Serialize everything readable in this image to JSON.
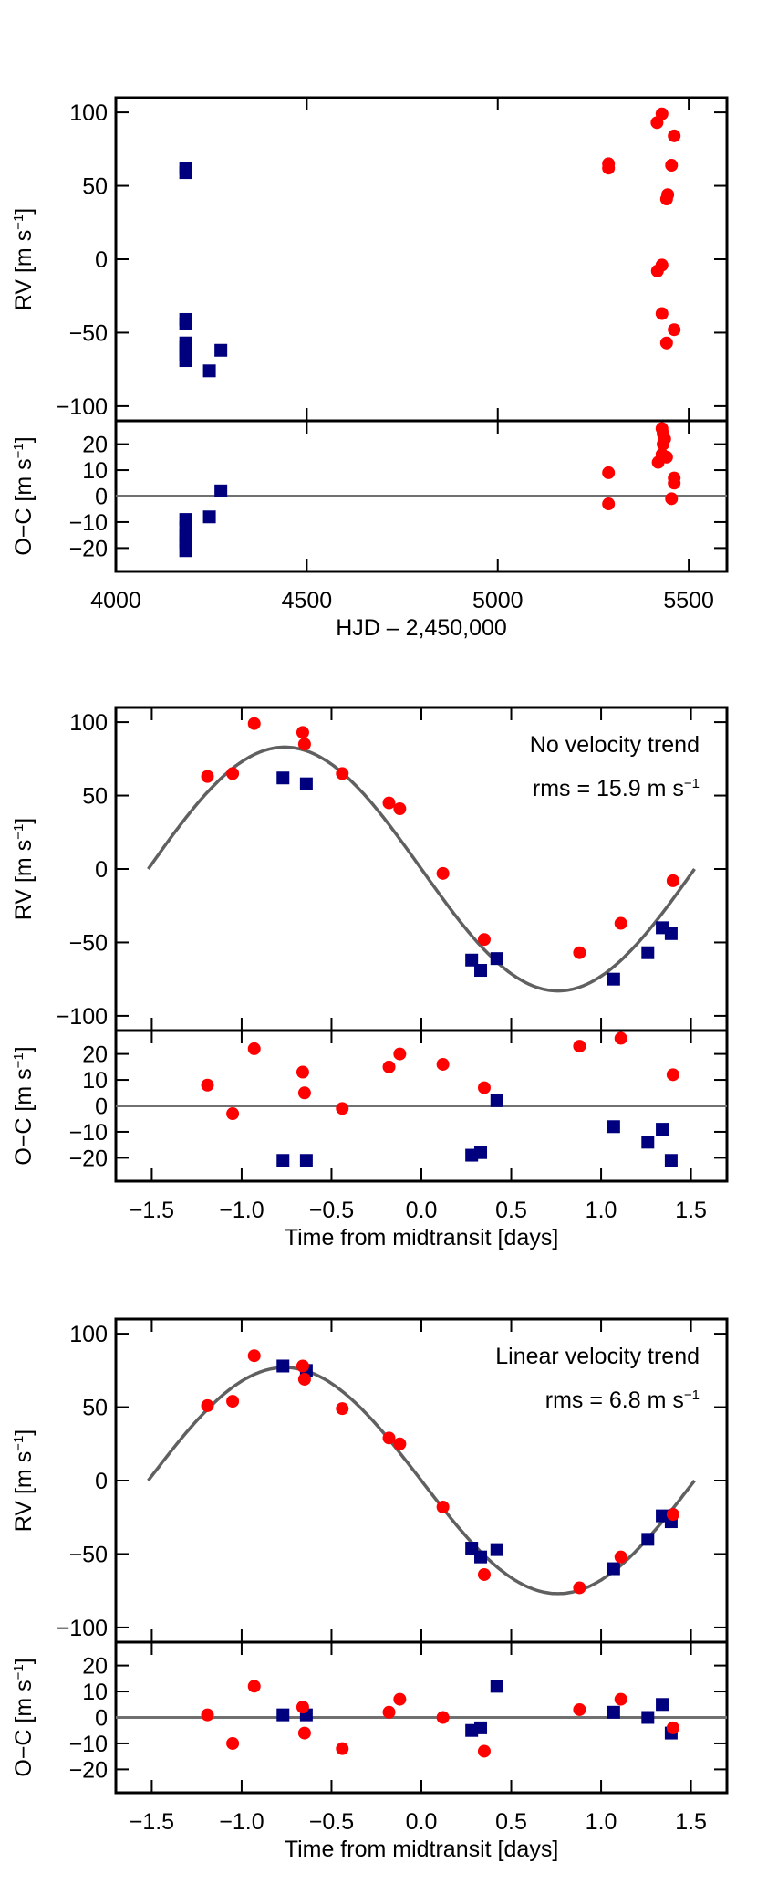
{
  "figure": {
    "description_free": true
  },
  "chart_data": [
    {
      "id": "rv_time",
      "type": "scatter",
      "xlabel": "HJD – 2,450,000",
      "xlim": [
        4000,
        5600
      ],
      "xticks": [
        4000,
        4500,
        5000,
        5500
      ],
      "xtick_labels": [
        "4000",
        "4500",
        "5000",
        "5500"
      ],
      "top": {
        "ylabel": "RV [m s",
        "ylabel_sup": "−1",
        "ylabel_tail": "]",
        "ylim": [
          -110,
          110
        ],
        "yticks": [
          100,
          50,
          0,
          -50,
          -100
        ],
        "ytick_labels": [
          "100",
          "50",
          "0",
          "−50",
          "−100"
        ],
        "series": [
          {
            "name": "blue",
            "marker": "square",
            "color": "#00007f",
            "x": [
              4183,
              4183,
              4183,
              4183,
              4183,
              4183,
              4183,
              4183,
              4183,
              4245,
              4275
            ],
            "y": [
              62,
              59,
              -41,
              -44,
              -57,
              -60,
              -62,
              -65,
              -69,
              -76,
              -62
            ]
          },
          {
            "name": "red",
            "marker": "circle",
            "color": "#ff0000",
            "x": [
              5290,
              5290,
              5417,
              5430,
              5462,
              5455,
              5445,
              5442,
              5418,
              5430,
              5430,
              5462,
              5442
            ],
            "y": [
              65,
              62,
              93,
              99,
              84,
              64,
              44,
              41,
              -8,
              -4,
              -37,
              -48,
              -57
            ]
          }
        ]
      },
      "residual": {
        "ylabel": "O−C [m s",
        "ylabel_sup": "−1",
        "ylabel_tail": "]",
        "ylim": [
          -29,
          29
        ],
        "yticks": [
          20,
          10,
          0,
          -10,
          -20
        ],
        "ytick_labels": [
          "20",
          "10",
          "0",
          "−10",
          "−20"
        ],
        "zero_line": true,
        "series": [
          {
            "name": "blue",
            "marker": "square",
            "color": "#00007f",
            "x": [
              4183,
              4183,
              4183,
              4183,
              4183,
              4183,
              4245,
              4275
            ],
            "y": [
              -9,
              -12,
              -15,
              -17,
              -18,
              -21,
              -8,
              2
            ]
          },
          {
            "name": "red",
            "marker": "circle",
            "color": "#ff0000",
            "x": [
              5290,
              5290,
              5430,
              5433,
              5437,
              5433,
              5430,
              5420,
              5442,
              5462,
              5462,
              5455
            ],
            "y": [
              9,
              -3,
              26,
              24,
              22,
              20,
              16,
              13,
              15,
              7,
              5,
              -1
            ]
          }
        ]
      }
    },
    {
      "id": "rv_phase_no_trend",
      "type": "scatter",
      "xlabel": "Time from midtransit [days]",
      "xlim": [
        -1.7,
        1.7
      ],
      "xticks": [
        -1.5,
        -1.0,
        -0.5,
        0.0,
        0.5,
        1.0,
        1.5
      ],
      "xtick_labels": [
        "−1.5",
        "−1.0",
        "−0.5",
        "0.0",
        "0.5",
        "1.0",
        "1.5"
      ],
      "annotation_title": "No velocity trend",
      "annotation_rms": "rms = 15.9 m s",
      "annotation_sup": "−1",
      "model": {
        "type": "sine",
        "amplitude": 83,
        "period": 3.04,
        "x_start": -1.52,
        "x_end": 1.52,
        "color": "#606060"
      },
      "top": {
        "ylabel": "RV [m s",
        "ylabel_sup": "−1",
        "ylabel_tail": "]",
        "ylim": [
          -110,
          110
        ],
        "yticks": [
          100,
          50,
          0,
          -50,
          -100
        ],
        "ytick_labels": [
          "100",
          "50",
          "0",
          "−50",
          "−100"
        ],
        "series": [
          {
            "name": "blue",
            "marker": "square",
            "color": "#00007f",
            "x": [
              -0.77,
              -0.64,
              0.28,
              0.33,
              0.42,
              1.07,
              1.26,
              1.34,
              1.39
            ],
            "y": [
              62,
              58,
              -62,
              -69,
              -61,
              -75,
              -57,
              -40,
              -44
            ]
          },
          {
            "name": "red",
            "marker": "circle",
            "color": "#ff0000",
            "x": [
              -1.19,
              -1.05,
              -0.93,
              -0.66,
              -0.65,
              -0.44,
              -0.18,
              -0.12,
              0.12,
              0.35,
              0.88,
              1.11,
              1.4
            ],
            "y": [
              63,
              65,
              99,
              93,
              85,
              65,
              45,
              41,
              -3,
              -48,
              -57,
              -37,
              -8
            ]
          }
        ]
      },
      "residual": {
        "ylabel": "O−C [m s",
        "ylabel_sup": "−1",
        "ylabel_tail": "]",
        "ylim": [
          -29,
          29
        ],
        "yticks": [
          20,
          10,
          0,
          -10,
          -20
        ],
        "ytick_labels": [
          "20",
          "10",
          "0",
          "−10",
          "−20"
        ],
        "zero_line": true,
        "series": [
          {
            "name": "blue",
            "marker": "square",
            "color": "#00007f",
            "x": [
              -0.77,
              -0.64,
              0.28,
              0.33,
              0.42,
              1.07,
              1.26,
              1.34,
              1.39
            ],
            "y": [
              -21,
              -21,
              -19,
              -18,
              2,
              -8,
              -14,
              -9,
              -21
            ]
          },
          {
            "name": "red",
            "marker": "circle",
            "color": "#ff0000",
            "x": [
              -1.19,
              -1.05,
              -0.93,
              -0.66,
              -0.65,
              -0.44,
              -0.18,
              -0.12,
              0.12,
              0.35,
              0.88,
              1.11,
              1.4
            ],
            "y": [
              8,
              -3,
              22,
              13,
              5,
              -1,
              15,
              20,
              16,
              7,
              23,
              26,
              12
            ]
          }
        ]
      }
    },
    {
      "id": "rv_phase_linear_trend",
      "type": "scatter",
      "xlabel": "Time from midtransit [days]",
      "xlim": [
        -1.7,
        1.7
      ],
      "xticks": [
        -1.5,
        -1.0,
        -0.5,
        0.0,
        0.5,
        1.0,
        1.5
      ],
      "xtick_labels": [
        "−1.5",
        "−1.0",
        "−0.5",
        "0.0",
        "0.5",
        "1.0",
        "1.5"
      ],
      "annotation_title": "Linear velocity trend",
      "annotation_rms": "rms = 6.8 m s",
      "annotation_sup": "−1",
      "model": {
        "type": "sine",
        "amplitude": 77,
        "period": 3.04,
        "x_start": -1.52,
        "x_end": 1.52,
        "color": "#606060"
      },
      "top": {
        "ylabel": "RV [m s",
        "ylabel_sup": "−1",
        "ylabel_tail": "]",
        "ylim": [
          -110,
          110
        ],
        "yticks": [
          100,
          50,
          0,
          -50,
          -100
        ],
        "ytick_labels": [
          "100",
          "50",
          "0",
          "−50",
          "−100"
        ],
        "series": [
          {
            "name": "blue",
            "marker": "square",
            "color": "#00007f",
            "x": [
              -0.77,
              -0.64,
              0.28,
              0.33,
              0.42,
              1.07,
              1.26,
              1.34,
              1.39
            ],
            "y": [
              78,
              75,
              -46,
              -52,
              -47,
              -60,
              -40,
              -24,
              -28
            ]
          },
          {
            "name": "red",
            "marker": "circle",
            "color": "#ff0000",
            "x": [
              -1.19,
              -1.05,
              -0.93,
              -0.66,
              -0.65,
              -0.44,
              -0.18,
              -0.12,
              0.12,
              0.35,
              0.88,
              1.11,
              1.4
            ],
            "y": [
              51,
              54,
              85,
              78,
              69,
              49,
              29,
              25,
              -18,
              -64,
              -73,
              -52,
              -23
            ]
          }
        ]
      },
      "residual": {
        "ylabel": "O−C [m s",
        "ylabel_sup": "−1",
        "ylabel_tail": "]",
        "ylim": [
          -29,
          29
        ],
        "yticks": [
          20,
          10,
          0,
          -10,
          -20
        ],
        "ytick_labels": [
          "20",
          "10",
          "0",
          "−10",
          "−20"
        ],
        "zero_line": true,
        "series": [
          {
            "name": "blue",
            "marker": "square",
            "color": "#00007f",
            "x": [
              -0.77,
              -0.64,
              0.28,
              0.33,
              0.42,
              1.07,
              1.26,
              1.34,
              1.39
            ],
            "y": [
              1,
              1,
              -5,
              -4,
              12,
              2,
              0,
              5,
              -6
            ]
          },
          {
            "name": "red",
            "marker": "circle",
            "color": "#ff0000",
            "x": [
              -1.19,
              -1.05,
              -0.93,
              -0.66,
              -0.65,
              -0.44,
              -0.18,
              -0.12,
              0.12,
              0.35,
              0.88,
              1.11,
              1.4
            ],
            "y": [
              1,
              -10,
              12,
              4,
              -6,
              -12,
              2,
              7,
              0,
              -13,
              3,
              7,
              -4
            ]
          }
        ]
      }
    }
  ]
}
